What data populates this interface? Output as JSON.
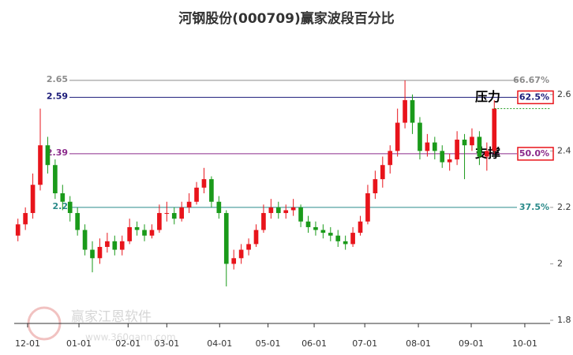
{
  "chart_data": {
    "type": "candlestick",
    "title": "河钢股份(000709)赢家波段百分比",
    "up_color": "#e8141b",
    "down_color": "#1a9a1a",
    "candles": [
      [
        2.1,
        2.16,
        2.08,
        2.14
      ],
      [
        2.14,
        2.2,
        2.12,
        2.18
      ],
      [
        2.18,
        2.32,
        2.16,
        2.28
      ],
      [
        2.28,
        2.55,
        2.26,
        2.42
      ],
      [
        2.42,
        2.45,
        2.32,
        2.35
      ],
      [
        2.35,
        2.37,
        2.23,
        2.25
      ],
      [
        2.25,
        2.28,
        2.19,
        2.22
      ],
      [
        2.22,
        2.24,
        2.15,
        2.18
      ],
      [
        2.18,
        2.2,
        2.1,
        2.12
      ],
      [
        2.12,
        2.14,
        2.03,
        2.05
      ],
      [
        2.05,
        2.08,
        1.97,
        2.02
      ],
      [
        2.02,
        2.09,
        2.0,
        2.06
      ],
      [
        2.06,
        2.11,
        2.04,
        2.08
      ],
      [
        2.08,
        2.1,
        2.03,
        2.05
      ],
      [
        2.05,
        2.1,
        2.03,
        2.08
      ],
      [
        2.08,
        2.16,
        2.07,
        2.13
      ],
      [
        2.13,
        2.15,
        2.1,
        2.12
      ],
      [
        2.12,
        2.14,
        2.08,
        2.1
      ],
      [
        2.1,
        2.14,
        2.09,
        2.12
      ],
      [
        2.12,
        2.21,
        2.11,
        2.18
      ],
      [
        2.18,
        2.22,
        2.15,
        2.18
      ],
      [
        2.18,
        2.2,
        2.14,
        2.16
      ],
      [
        2.16,
        2.22,
        2.15,
        2.2
      ],
      [
        2.2,
        2.25,
        2.18,
        2.22
      ],
      [
        2.22,
        2.29,
        2.21,
        2.27
      ],
      [
        2.27,
        2.34,
        2.25,
        2.3
      ],
      [
        2.3,
        2.31,
        2.2,
        2.22
      ],
      [
        2.22,
        2.24,
        2.16,
        2.18
      ],
      [
        2.18,
        2.19,
        1.92,
        2.0
      ],
      [
        2.0,
        2.05,
        1.98,
        2.02
      ],
      [
        2.02,
        2.07,
        2.0,
        2.05
      ],
      [
        2.05,
        2.09,
        2.03,
        2.07
      ],
      [
        2.07,
        2.14,
        2.06,
        2.12
      ],
      [
        2.12,
        2.21,
        2.11,
        2.18
      ],
      [
        2.18,
        2.23,
        2.16,
        2.2
      ],
      [
        2.2,
        2.22,
        2.16,
        2.18
      ],
      [
        2.18,
        2.21,
        2.16,
        2.19
      ],
      [
        2.19,
        2.23,
        2.17,
        2.2
      ],
      [
        2.2,
        2.21,
        2.13,
        2.15
      ],
      [
        2.15,
        2.17,
        2.11,
        2.13
      ],
      [
        2.13,
        2.15,
        2.1,
        2.12
      ],
      [
        2.12,
        2.14,
        2.09,
        2.11
      ],
      [
        2.11,
        2.13,
        2.08,
        2.1
      ],
      [
        2.1,
        2.12,
        2.06,
        2.08
      ],
      [
        2.08,
        2.1,
        2.05,
        2.07
      ],
      [
        2.07,
        2.13,
        2.06,
        2.11
      ],
      [
        2.11,
        2.17,
        2.1,
        2.15
      ],
      [
        2.15,
        2.28,
        2.14,
        2.25
      ],
      [
        2.25,
        2.33,
        2.23,
        2.3
      ],
      [
        2.3,
        2.38,
        2.27,
        2.35
      ],
      [
        2.35,
        2.42,
        2.32,
        2.4
      ],
      [
        2.4,
        2.55,
        2.38,
        2.5
      ],
      [
        2.5,
        2.65,
        2.48,
        2.58
      ],
      [
        2.58,
        2.6,
        2.46,
        2.5
      ],
      [
        2.5,
        2.52,
        2.37,
        2.4
      ],
      [
        2.4,
        2.46,
        2.38,
        2.43
      ],
      [
        2.43,
        2.45,
        2.37,
        2.4
      ],
      [
        2.4,
        2.42,
        2.34,
        2.36
      ],
      [
        2.36,
        2.39,
        2.33,
        2.37
      ],
      [
        2.37,
        2.47,
        2.35,
        2.44
      ],
      [
        2.44,
        2.46,
        2.3,
        2.42
      ],
      [
        2.42,
        2.48,
        2.4,
        2.45
      ],
      [
        2.45,
        2.47,
        2.35,
        2.38
      ],
      [
        2.38,
        2.43,
        2.33,
        2.4
      ],
      [
        2.4,
        2.58,
        2.39,
        2.55
      ]
    ],
    "xlim": [
      0,
      72
    ],
    "xticks": [
      {
        "value": 1.8,
        "label": "12-01"
      },
      {
        "value": 8.7,
        "label": "01-01"
      },
      {
        "value": 15.3,
        "label": "02-01"
      },
      {
        "value": 20.5,
        "label": "03-01"
      },
      {
        "value": 27.6,
        "label": "04-01"
      },
      {
        "value": 34.1,
        "label": "05-01"
      },
      {
        "value": 40.3,
        "label": "06-01"
      },
      {
        "value": 47.1,
        "label": "07-01"
      },
      {
        "value": 54.3,
        "label": "08-01"
      },
      {
        "value": 61.4,
        "label": "09-01"
      },
      {
        "value": 68.6,
        "label": "10-01"
      }
    ],
    "ylim": [
      1.8,
      2.7
    ],
    "yticks": [
      1.8,
      2,
      2.2,
      2.4,
      2.6
    ],
    "levels": [
      {
        "value": 2.65,
        "percent": "66.67%",
        "color": "#8c8c8c"
      },
      {
        "value": 2.59,
        "percent": "62.5%",
        "color": "#1c1c7a",
        "annotation": "压力",
        "boxed": true
      },
      {
        "value": 2.39,
        "percent": "50.0%",
        "color": "#8b2a8b",
        "annotation": "支撑",
        "boxed": true
      },
      {
        "value": 2.2,
        "percent": "37.5%",
        "color": "#2a8a8a"
      }
    ],
    "watermark": {
      "name": "赢家江恩软件",
      "url": "www.360gann.com"
    }
  }
}
